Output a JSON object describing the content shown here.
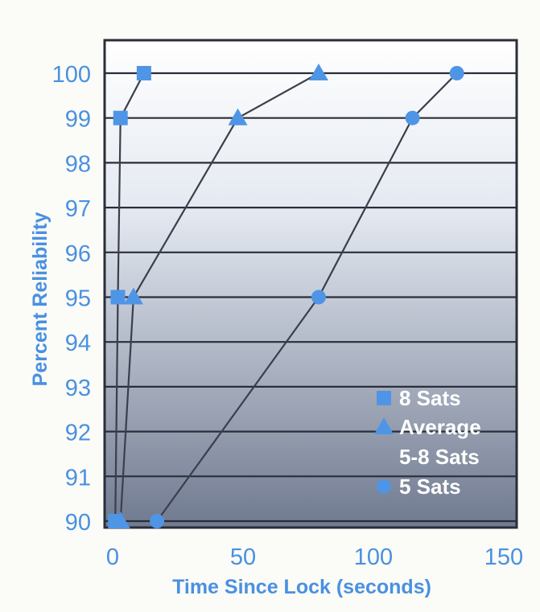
{
  "chart_data": {
    "type": "line",
    "title": "",
    "xlabel": "Time Since Lock (seconds)",
    "ylabel": "Percent Reliability",
    "xlim": [
      0,
      150
    ],
    "ylim": [
      90,
      100
    ],
    "xticks": [
      0,
      50,
      100,
      150
    ],
    "yticks": [
      90,
      91,
      92,
      93,
      94,
      95,
      96,
      97,
      98,
      99,
      100
    ],
    "grid": "horizontal",
    "legend_position": "bottom-right",
    "series": [
      {
        "name": "8 Sats",
        "marker": "square",
        "points": [
          [
            1,
            90
          ],
          [
            2,
            95
          ],
          [
            3,
            99
          ],
          [
            12,
            100
          ]
        ]
      },
      {
        "name": "Average 5-8 Sats",
        "legend_lines": [
          "Average",
          "5-8 Sats"
        ],
        "marker": "triangle",
        "points": [
          [
            3,
            90
          ],
          [
            8,
            95
          ],
          [
            48,
            99
          ],
          [
            79,
            100
          ]
        ]
      },
      {
        "name": "5 Sats",
        "marker": "circle",
        "points": [
          [
            17,
            90
          ],
          [
            79,
            95
          ],
          [
            115,
            99
          ],
          [
            132,
            100
          ]
        ]
      }
    ],
    "colors": {
      "marker": "#4f95e6",
      "axis_text": "#4a90e2",
      "line": "#3a3f4c",
      "frame": "#2a2e38",
      "legend_text": "#ffffff",
      "plot_bg_top": "#ffffff",
      "plot_bg_bottom": "#707a90"
    }
  }
}
